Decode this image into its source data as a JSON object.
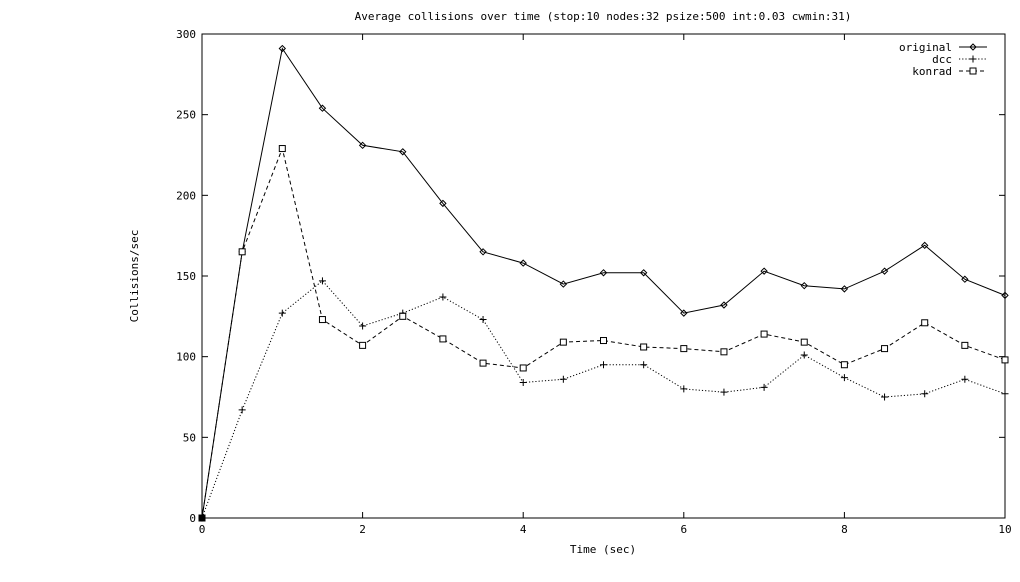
{
  "chart_data": {
    "type": "line",
    "title": "Average collisions over time (stop:10 nodes:32 psize:500 int:0.03 cwmin:31)",
    "xlabel": "Time (sec)",
    "ylabel": "Collisions/sec",
    "xlim": [
      0,
      10
    ],
    "ylim": [
      0,
      300
    ],
    "xticks": [
      0,
      2,
      4,
      6,
      8,
      10
    ],
    "yticks": [
      0,
      50,
      100,
      150,
      200,
      250,
      300
    ],
    "x_tick_labels": [
      "0",
      "2",
      "4",
      "6",
      "8",
      "10"
    ],
    "y_tick_labels": [
      "0",
      "50",
      "100",
      "150",
      "200",
      "250",
      "300"
    ],
    "grid": false,
    "legend_position": "top-right",
    "x": [
      0,
      0.5,
      1,
      1.5,
      2,
      2.5,
      3,
      3.5,
      4,
      4.5,
      5,
      5.5,
      6,
      6.5,
      7,
      7.5,
      8,
      8.5,
      9,
      9.5,
      10
    ],
    "series": [
      {
        "name": "original",
        "line": "solid",
        "marker": "diamond",
        "values": [
          0,
          165,
          291,
          254,
          231,
          227,
          195,
          165,
          158,
          145,
          152,
          152,
          127,
          132,
          153,
          144,
          142,
          153,
          169,
          148,
          138
        ]
      },
      {
        "name": "dcc",
        "line": "dotted",
        "marker": "plus",
        "values": [
          0,
          67,
          127,
          147,
          119,
          127,
          137,
          123,
          84,
          86,
          95,
          95,
          80,
          78,
          81,
          101,
          87,
          75,
          77,
          86,
          77
        ]
      },
      {
        "name": "konrad",
        "line": "dashed",
        "marker": "square",
        "values": [
          0,
          165,
          229,
          123,
          107,
          125,
          111,
          96,
          93,
          109,
          110,
          106,
          105,
          103,
          114,
          109,
          95,
          105,
          121,
          107,
          98
        ]
      }
    ]
  }
}
